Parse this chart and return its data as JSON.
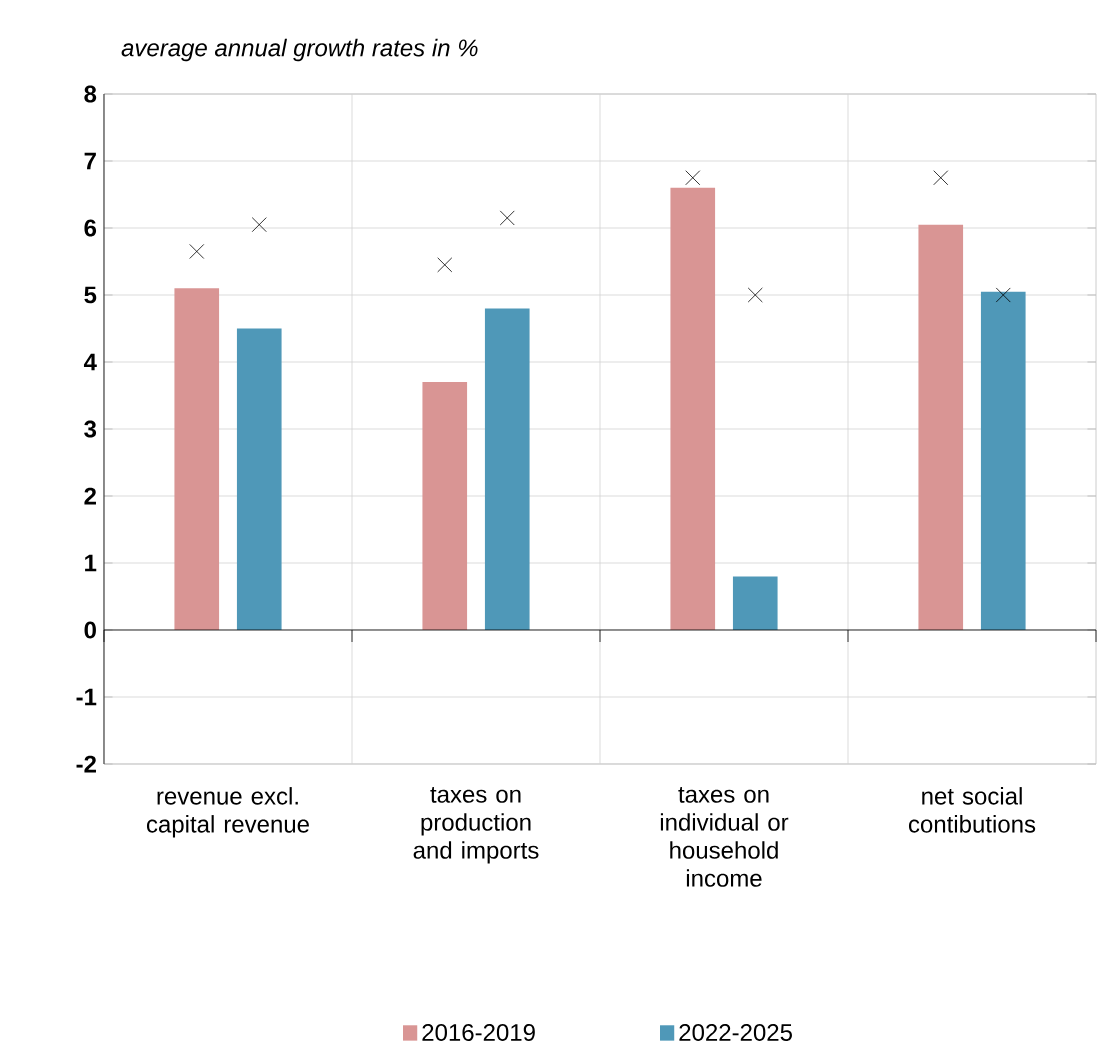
{
  "chart_data": {
    "type": "bar",
    "subtitle": "average annual growth rates in %",
    "categories": [
      "revenue excl. capital revenue",
      "taxes on production and imports",
      "taxes on individual or household income",
      "net social contibutions"
    ],
    "series": [
      {
        "name": "2016-2019",
        "color": "#d99594",
        "values": [
          5.1,
          3.7,
          6.6,
          6.05
        ]
      },
      {
        "name": "2022-2025",
        "color": "#4f98b8",
        "values": [
          4.5,
          4.8,
          0.8,
          5.05
        ]
      },
      {
        "type": "scatter",
        "color": "#000000",
        "marker": "cross",
        "values": [
          5.65,
          5.45,
          6.75,
          6.75
        ]
      },
      {
        "type": "scatter",
        "color": "#000000",
        "marker": "cross",
        "values": [
          6.05,
          6.15,
          5.0,
          5.0
        ]
      }
    ],
    "ylim": [
      -2,
      8
    ],
    "yticks": [
      -2,
      -1,
      0,
      1,
      2,
      3,
      4,
      5,
      6,
      7,
      8
    ],
    "grid": true,
    "legend": "bottom"
  }
}
